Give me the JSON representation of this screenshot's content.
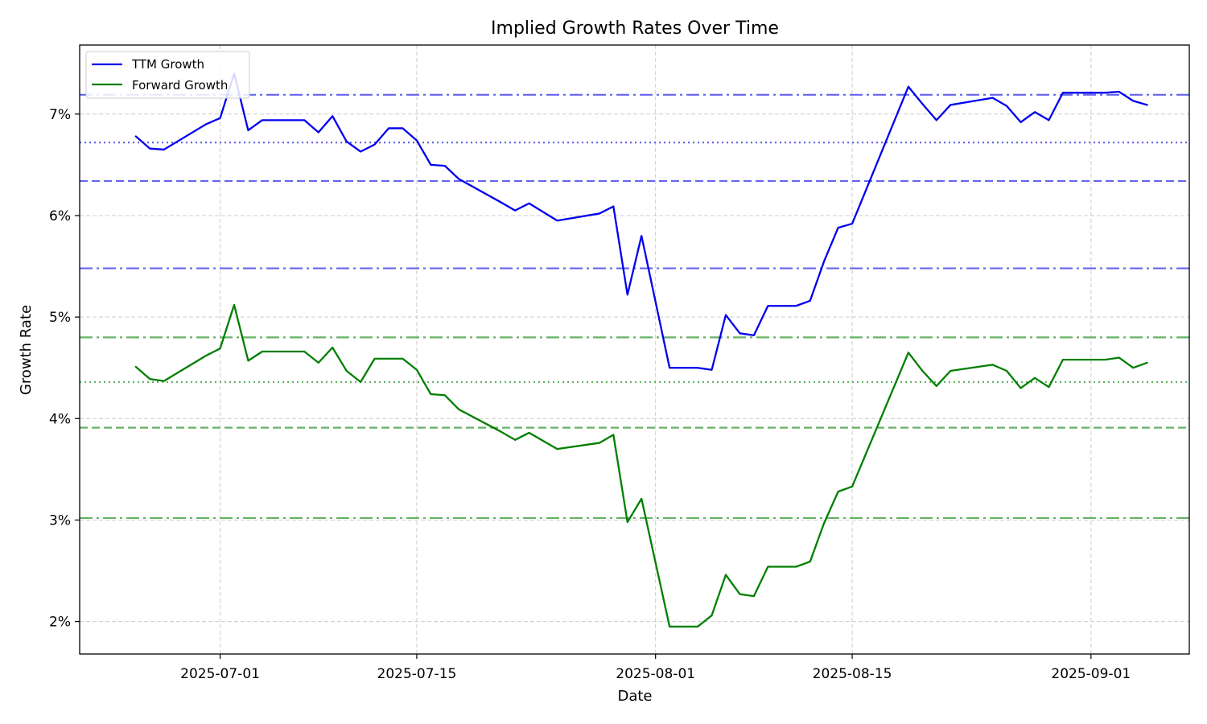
{
  "chart_data": {
    "type": "line",
    "title": "Implied Growth Rates Over Time",
    "xlabel": "Date",
    "ylabel": "Growth Rate",
    "xlim": [
      "2025-06-21",
      "2025-09-08"
    ],
    "ylim": [
      1.68,
      7.68
    ],
    "grid": true,
    "legend_position": "top-left",
    "x_ticks": [
      "2025-07-01",
      "2025-07-15",
      "2025-08-01",
      "2025-08-15",
      "2025-09-01"
    ],
    "y_ticks": [
      "2%",
      "3%",
      "4%",
      "5%",
      "6%",
      "7%"
    ],
    "y_tick_values": [
      2,
      3,
      4,
      5,
      6,
      7
    ],
    "series": [
      {
        "name": "TTM Growth",
        "color": "#0000ee",
        "points": [
          [
            "2025-06-25",
            6.78
          ],
          [
            "2025-06-26",
            6.66
          ],
          [
            "2025-06-27",
            6.65
          ],
          [
            "2025-06-30",
            6.9
          ],
          [
            "2025-07-01",
            6.96
          ],
          [
            "2025-07-02",
            7.4
          ],
          [
            "2025-07-03",
            6.84
          ],
          [
            "2025-07-04",
            6.94
          ],
          [
            "2025-07-07",
            6.94
          ],
          [
            "2025-07-08",
            6.82
          ],
          [
            "2025-07-09",
            6.98
          ],
          [
            "2025-07-10",
            6.73
          ],
          [
            "2025-07-11",
            6.63
          ],
          [
            "2025-07-12",
            6.7
          ],
          [
            "2025-07-13",
            6.86
          ],
          [
            "2025-07-14",
            6.86
          ],
          [
            "2025-07-15",
            6.74
          ],
          [
            "2025-07-16",
            6.5
          ],
          [
            "2025-07-17",
            6.49
          ],
          [
            "2025-07-18",
            6.36
          ],
          [
            "2025-07-21",
            6.13
          ],
          [
            "2025-07-22",
            6.05
          ],
          [
            "2025-07-23",
            6.12
          ],
          [
            "2025-07-25",
            5.95
          ],
          [
            "2025-07-28",
            6.02
          ],
          [
            "2025-07-29",
            6.09
          ],
          [
            "2025-07-30",
            5.22
          ],
          [
            "2025-07-31",
            5.8
          ],
          [
            "2025-08-02",
            4.5
          ],
          [
            "2025-08-04",
            4.5
          ],
          [
            "2025-08-05",
            4.48
          ],
          [
            "2025-08-06",
            5.02
          ],
          [
            "2025-08-07",
            4.84
          ],
          [
            "2025-08-08",
            4.82
          ],
          [
            "2025-08-09",
            5.11
          ],
          [
            "2025-08-11",
            5.11
          ],
          [
            "2025-08-12",
            5.16
          ],
          [
            "2025-08-13",
            5.55
          ],
          [
            "2025-08-14",
            5.88
          ],
          [
            "2025-08-15",
            5.92
          ],
          [
            "2025-08-19",
            7.27
          ],
          [
            "2025-08-20",
            7.1
          ],
          [
            "2025-08-21",
            6.94
          ],
          [
            "2025-08-22",
            7.09
          ],
          [
            "2025-08-25",
            7.16
          ],
          [
            "2025-08-26",
            7.08
          ],
          [
            "2025-08-27",
            6.92
          ],
          [
            "2025-08-28",
            7.02
          ],
          [
            "2025-08-29",
            6.94
          ],
          [
            "2025-08-30",
            7.21
          ],
          [
            "2025-09-01",
            7.21
          ],
          [
            "2025-09-02",
            7.21
          ],
          [
            "2025-09-03",
            7.22
          ],
          [
            "2025-09-04",
            7.13
          ],
          [
            "2025-09-05",
            7.09
          ]
        ]
      },
      {
        "name": "Forward Growth",
        "color": "#007f00",
        "points": [
          [
            "2025-06-25",
            4.51
          ],
          [
            "2025-06-26",
            4.39
          ],
          [
            "2025-06-27",
            4.37
          ],
          [
            "2025-06-30",
            4.62
          ],
          [
            "2025-07-01",
            4.69
          ],
          [
            "2025-07-02",
            5.12
          ],
          [
            "2025-07-03",
            4.57
          ],
          [
            "2025-07-04",
            4.66
          ],
          [
            "2025-07-07",
            4.66
          ],
          [
            "2025-07-08",
            4.55
          ],
          [
            "2025-07-09",
            4.7
          ],
          [
            "2025-07-10",
            4.47
          ],
          [
            "2025-07-11",
            4.36
          ],
          [
            "2025-07-12",
            4.59
          ],
          [
            "2025-07-14",
            4.59
          ],
          [
            "2025-07-15",
            4.48
          ],
          [
            "2025-07-16",
            4.24
          ],
          [
            "2025-07-17",
            4.23
          ],
          [
            "2025-07-18",
            4.09
          ],
          [
            "2025-07-21",
            3.87
          ],
          [
            "2025-07-22",
            3.79
          ],
          [
            "2025-07-23",
            3.86
          ],
          [
            "2025-07-25",
            3.7
          ],
          [
            "2025-07-28",
            3.76
          ],
          [
            "2025-07-29",
            3.84
          ],
          [
            "2025-07-30",
            2.98
          ],
          [
            "2025-07-31",
            3.21
          ],
          [
            "2025-08-02",
            1.95
          ],
          [
            "2025-08-04",
            1.95
          ],
          [
            "2025-08-05",
            2.06
          ],
          [
            "2025-08-06",
            2.46
          ],
          [
            "2025-08-07",
            2.27
          ],
          [
            "2025-08-08",
            2.25
          ],
          [
            "2025-08-09",
            2.54
          ],
          [
            "2025-08-11",
            2.54
          ],
          [
            "2025-08-12",
            2.59
          ],
          [
            "2025-08-13",
            2.97
          ],
          [
            "2025-08-14",
            3.28
          ],
          [
            "2025-08-15",
            3.33
          ],
          [
            "2025-08-19",
            4.65
          ],
          [
            "2025-08-20",
            4.47
          ],
          [
            "2025-08-21",
            4.32
          ],
          [
            "2025-08-22",
            4.47
          ],
          [
            "2025-08-25",
            4.53
          ],
          [
            "2025-08-26",
            4.47
          ],
          [
            "2025-08-27",
            4.3
          ],
          [
            "2025-08-28",
            4.4
          ],
          [
            "2025-08-29",
            4.31
          ],
          [
            "2025-08-30",
            4.58
          ],
          [
            "2025-09-01",
            4.58
          ],
          [
            "2025-09-02",
            4.58
          ],
          [
            "2025-09-03",
            4.6
          ],
          [
            "2025-09-04",
            4.5
          ],
          [
            "2025-09-05",
            4.55
          ]
        ]
      }
    ],
    "reference_lines": [
      {
        "series": "TTM Growth",
        "value": 7.19,
        "style": "dashdot",
        "color": "#5555ee"
      },
      {
        "series": "TTM Growth",
        "value": 6.72,
        "style": "dotted",
        "color": "#5555ee"
      },
      {
        "series": "TTM Growth",
        "value": 6.34,
        "style": "dashed",
        "color": "#5555ee"
      },
      {
        "series": "TTM Growth",
        "value": 5.48,
        "style": "dashdot",
        "color": "#5555ee"
      },
      {
        "series": "Forward Growth",
        "value": 4.8,
        "style": "dashdot",
        "color": "#55aa55"
      },
      {
        "series": "Forward Growth",
        "value": 4.36,
        "style": "dotted",
        "color": "#55aa55"
      },
      {
        "series": "Forward Growth",
        "value": 3.91,
        "style": "dashed",
        "color": "#55aa55"
      },
      {
        "series": "Forward Growth",
        "value": 3.02,
        "style": "dashdot",
        "color": "#55aa55"
      }
    ]
  }
}
